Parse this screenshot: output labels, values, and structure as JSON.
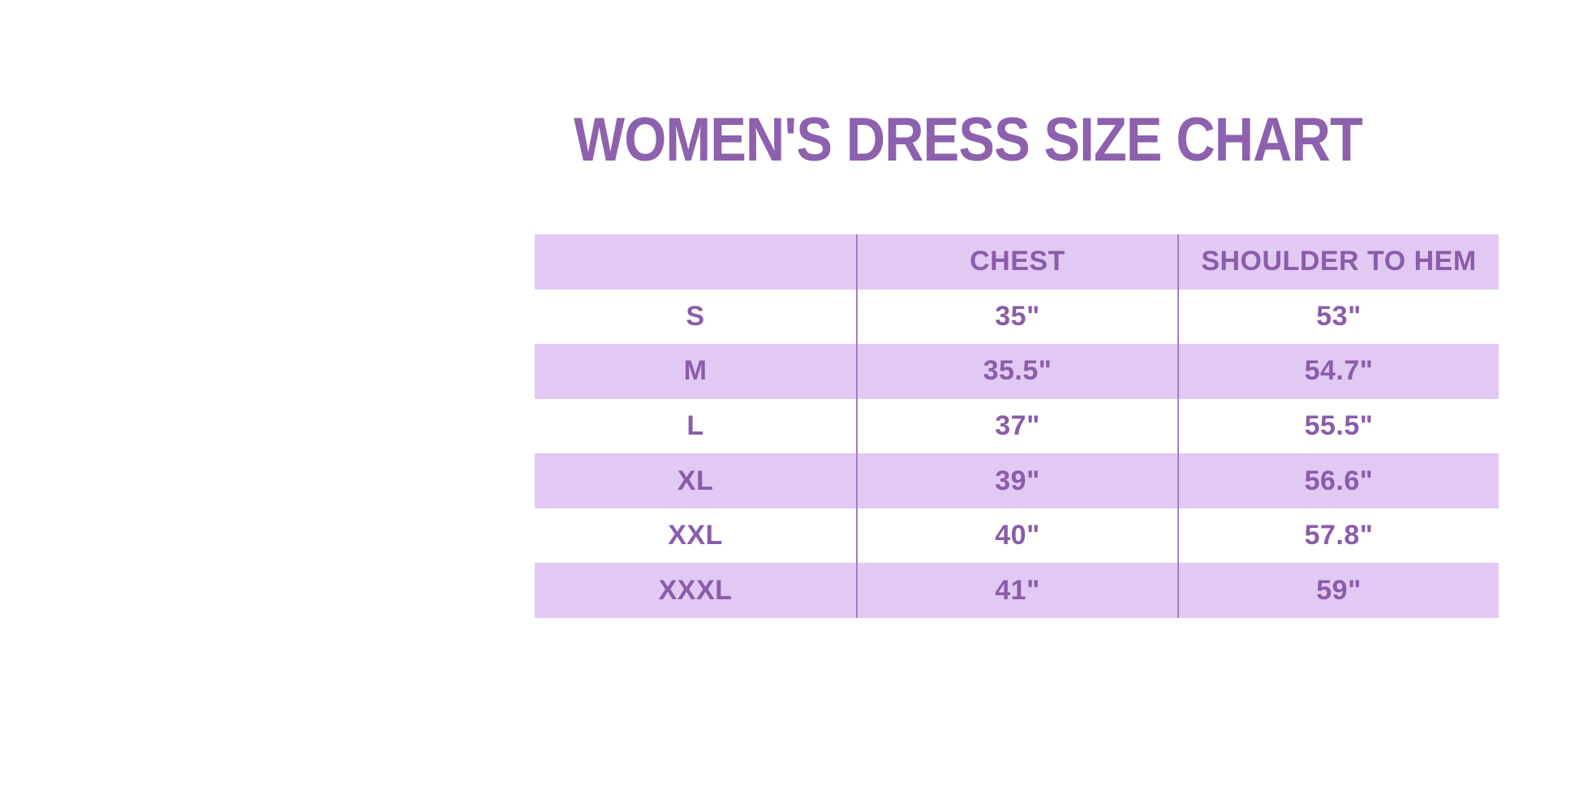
{
  "title": "WOMEN'S DRESS SIZE CHART",
  "colors": {
    "title_text": "#8d61ae",
    "cell_text": "#8b5caa",
    "row_lavender": "#e1c9f3",
    "row_white": "#ffffff",
    "column_divider": "#a57cc4"
  },
  "table": {
    "headers": {
      "size": "",
      "chest": "CHEST",
      "shoulder_to_hem": "SHOULDER TO HEM"
    },
    "rows": [
      {
        "size": "S",
        "chest": "35\"",
        "shoulder_to_hem": "53\""
      },
      {
        "size": "M",
        "chest": "35.5\"",
        "shoulder_to_hem": "54.7\""
      },
      {
        "size": "L",
        "chest": "37\"",
        "shoulder_to_hem": "55.5\""
      },
      {
        "size": "XL",
        "chest": "39\"",
        "shoulder_to_hem": "56.6\""
      },
      {
        "size": "XXL",
        "chest": "40\"",
        "shoulder_to_hem": "57.8\""
      },
      {
        "size": "XXXL",
        "chest": "41\"",
        "shoulder_to_hem": "59\""
      }
    ]
  },
  "chart_data": {
    "type": "table",
    "title": "WOMEN'S DRESS SIZE CHART",
    "columns": [
      "",
      "CHEST",
      "SHOULDER TO HEM"
    ],
    "rows": [
      [
        "S",
        "35\"",
        "53\""
      ],
      [
        "M",
        "35.5\"",
        "54.7\""
      ],
      [
        "L",
        "37\"",
        "55.5\""
      ],
      [
        "XL",
        "39\"",
        "56.6\""
      ],
      [
        "XXL",
        "40\"",
        "57.8\""
      ],
      [
        "XXXL",
        "41\"",
        "59\""
      ]
    ],
    "layout": {
      "header_background": "#e1c9f3",
      "alternating_rows": true,
      "column_count": 3,
      "row_count": 7
    }
  }
}
